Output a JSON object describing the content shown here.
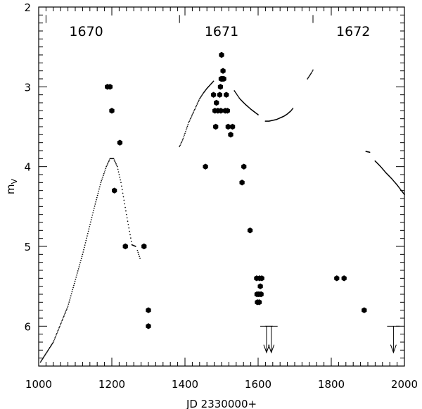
{
  "chart_data": {
    "type": "scatter",
    "title": "",
    "xlabel": "JD 2330000+",
    "ylabel_main": "m",
    "ylabel_sub": "V",
    "xlim": [
      1000,
      2000
    ],
    "ylim": [
      2,
      6.5
    ],
    "y_inverted": true,
    "grid": false,
    "x_ticks": [
      1000,
      1200,
      1400,
      1600,
      1800,
      2000
    ],
    "y_ticks": [
      2,
      3,
      4,
      5,
      6
    ],
    "x_tick_labels": [
      "1000",
      "1200",
      "1400",
      "1600",
      "1800",
      "2000"
    ],
    "y_tick_labels": [
      "2",
      "3",
      "4",
      "5",
      "6"
    ],
    "year_markers": [
      {
        "label": "1670",
        "jd": 1020,
        "label_x": 1130
      },
      {
        "label": "1671",
        "jd": 1385,
        "label_x": 1500
      },
      {
        "label": "1672",
        "jd": 1750,
        "label_x": 1860
      }
    ],
    "observations": {
      "name": "",
      "points": [
        [
          1188,
          3.0
        ],
        [
          1195,
          3.0
        ],
        [
          1200,
          3.3
        ],
        [
          1207,
          4.3
        ],
        [
          1222,
          3.7
        ],
        [
          1237,
          5.0
        ],
        [
          1288,
          5.0
        ],
        [
          1300,
          5.8
        ],
        [
          1300,
          6.0
        ],
        [
          1456,
          4.0
        ],
        [
          1478,
          3.1
        ],
        [
          1482,
          3.3
        ],
        [
          1484,
          3.5
        ],
        [
          1486,
          3.2
        ],
        [
          1490,
          3.3
        ],
        [
          1495,
          3.1
        ],
        [
          1497,
          3.0
        ],
        [
          1498,
          3.3
        ],
        [
          1499,
          2.9
        ],
        [
          1500,
          2.6
        ],
        [
          1502,
          2.9
        ],
        [
          1504,
          2.8
        ],
        [
          1506,
          2.9
        ],
        [
          1510,
          3.3
        ],
        [
          1513,
          3.1
        ],
        [
          1516,
          3.3
        ],
        [
          1518,
          3.5
        ],
        [
          1525,
          3.6
        ],
        [
          1530,
          3.5
        ],
        [
          1556,
          4.2
        ],
        [
          1561,
          4.0
        ],
        [
          1578,
          4.8
        ],
        [
          1596,
          5.4
        ],
        [
          1597,
          5.6
        ],
        [
          1598,
          5.7
        ],
        [
          1602,
          5.6
        ],
        [
          1604,
          5.4
        ],
        [
          1606,
          5.5
        ],
        [
          1608,
          5.6
        ],
        [
          1610,
          5.4
        ],
        [
          1603,
          5.7
        ],
        [
          1815,
          5.4
        ],
        [
          1835,
          5.4
        ],
        [
          1890,
          5.8
        ]
      ]
    },
    "model_curves": [
      {
        "name": "",
        "x": [
          1005,
          1040,
          1080,
          1120,
          1150,
          1170,
          1185,
          1195,
          1205,
          1215,
          1225,
          1240,
          1255,
          1265
        ],
        "y": [
          6.45,
          6.2,
          5.75,
          5.1,
          4.55,
          4.2,
          4.0,
          3.9,
          3.9,
          4.0,
          4.2,
          4.6,
          4.98,
          5.0
        ]
      },
      {
        "name": "",
        "x": [
          1270,
          1277
        ],
        "y": [
          5.05,
          5.15
        ]
      },
      {
        "name": "",
        "x": [
          1385,
          1395,
          1410,
          1420,
          1430,
          1440,
          1450,
          1460,
          1470,
          1478
        ],
        "y": [
          3.75,
          3.65,
          3.45,
          3.35,
          3.25,
          3.15,
          3.08,
          3.02,
          2.97,
          2.93
        ]
      },
      {
        "name": "",
        "x": [
          1535,
          1550,
          1565,
          1580,
          1600
        ],
        "y": [
          3.05,
          3.15,
          3.22,
          3.28,
          3.35
        ]
      },
      {
        "name": "",
        "x": [
          1620,
          1630,
          1640,
          1650,
          1660,
          1670,
          1680,
          1690,
          1695
        ],
        "y": [
          3.43,
          3.43,
          3.42,
          3.41,
          3.39,
          3.37,
          3.34,
          3.3,
          3.27
        ]
      },
      {
        "name": "",
        "x": [
          1735,
          1745,
          1750
        ],
        "y": [
          2.9,
          2.83,
          2.79
        ]
      },
      {
        "name": "",
        "x": [
          1895,
          1905
        ],
        "y": [
          3.81,
          3.82
        ]
      },
      {
        "name": "",
        "x": [
          1920,
          1935,
          1950,
          1965,
          1980,
          2000
        ],
        "y": [
          3.93,
          4.0,
          4.08,
          4.15,
          4.23,
          4.35
        ]
      }
    ],
    "upper_limits": [
      {
        "x": 1623,
        "y": 6.0
      },
      {
        "x": 1636,
        "y": 6.0
      },
      {
        "x": 1970,
        "y": 6.0
      }
    ]
  }
}
